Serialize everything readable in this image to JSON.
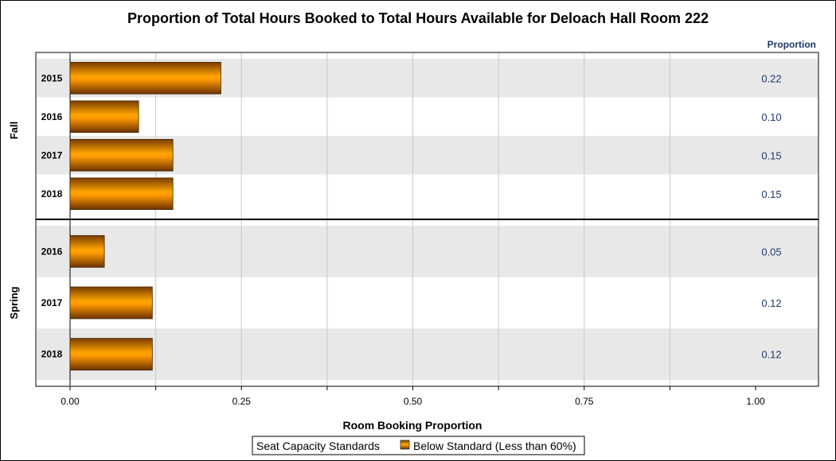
{
  "chart_data": {
    "type": "bar",
    "orientation": "horizontal",
    "title": "Proportion of Total Hours Booked to Total Hours Available for Deloach Hall Room 222",
    "xlabel": "Room Booking Proportion",
    "xlim": [
      0,
      1
    ],
    "xticks": [
      "0.00",
      "0.25",
      "0.50",
      "0.75",
      "1.00"
    ],
    "xtick_values": [
      0,
      0.25,
      0.5,
      0.75,
      1.0
    ],
    "stat_column_header": "Proportion",
    "grid": true,
    "groups": [
      {
        "name": "Fall",
        "categories": [
          "2015",
          "2016",
          "2017",
          "2018"
        ],
        "values": [
          0.22,
          0.1,
          0.15,
          0.15
        ],
        "labels": [
          "0.22",
          "0.10",
          "0.15",
          "0.15"
        ]
      },
      {
        "name": "Spring",
        "categories": [
          "2016",
          "2017",
          "2018"
        ],
        "values": [
          0.05,
          0.12,
          0.12
        ],
        "labels": [
          "0.05",
          "0.12",
          "0.12"
        ]
      }
    ],
    "legend": {
      "title": "Seat Capacity Standards",
      "entries": [
        {
          "label": "Below Standard (Less than 60%)",
          "color": "#ff9900"
        }
      ],
      "placement": "bottom"
    },
    "colors": {
      "bar_light": "#ffa500",
      "bar_dark": "#7a3d00",
      "band": "#e8e8e8",
      "stat_text": "#1f3a6a"
    }
  }
}
